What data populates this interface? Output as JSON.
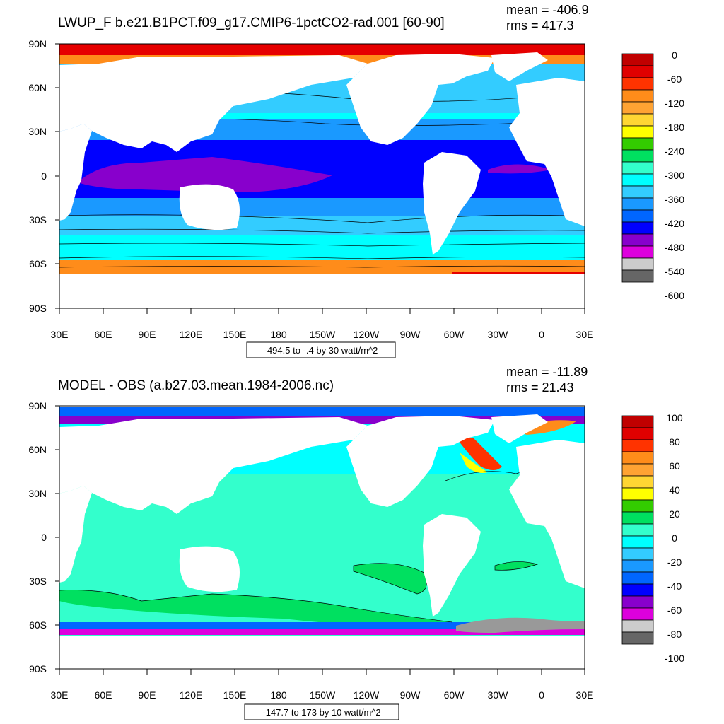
{
  "panels": [
    {
      "title": "LWUP_F b.e21.B1PCT.f09_g17.CMIP6-1pctCO2-rad.001 [60-90]",
      "mean": "mean = -406.9",
      "rms": "rms = 417.3",
      "lat_labels": [
        "90N",
        "60N",
        "30N",
        "0",
        "30S",
        "60S",
        "90S"
      ],
      "lon_labels": [
        "30E",
        "60E",
        "90E",
        "120E",
        "150E",
        "180",
        "150W",
        "120W",
        "90W",
        "60W",
        "30W",
        "0",
        "30E"
      ],
      "range_label": "-494.5 to -.4 by 30 watt/m^2",
      "colorbar_labels": [
        "0",
        "-60",
        "-120",
        "-180",
        "-240",
        "-300",
        "-360",
        "-420",
        "-480",
        "-540",
        "-600"
      ],
      "colorbar_colors": [
        "#c00000",
        "#e00000",
        "#ff3300",
        "#ff8c1a",
        "#ffa333",
        "#ffd633",
        "#ffff00",
        "#33cc00",
        "#00e060",
        "#33ffcc",
        "#00ffff",
        "#33ccff",
        "#1a99ff",
        "#0066ff",
        "#0000ff",
        "#8800cc",
        "#dd00dd",
        "#cccccc",
        "#666666"
      ]
    },
    {
      "title": "MODEL - OBS (a.b27.03.mean.1984-2006.nc)",
      "mean": "mean = -11.89",
      "rms": "rms = 21.43",
      "lat_labels": [
        "90N",
        "60N",
        "30N",
        "0",
        "30S",
        "60S",
        "90S"
      ],
      "lon_labels": [
        "30E",
        "60E",
        "90E",
        "120E",
        "150E",
        "180",
        "150W",
        "120W",
        "90W",
        "60W",
        "30W",
        "0",
        "30E"
      ],
      "range_label": "-147.7 to 173 by 10 watt/m^2",
      "colorbar_labels": [
        "100",
        "80",
        "60",
        "40",
        "20",
        "0",
        "-20",
        "-40",
        "-60",
        "-80",
        "-100"
      ],
      "colorbar_colors": [
        "#c00000",
        "#e00000",
        "#ff3300",
        "#ff8c1a",
        "#ffa333",
        "#ffd633",
        "#ffff00",
        "#33cc00",
        "#00e060",
        "#33ffcc",
        "#00ffff",
        "#33ccff",
        "#1a99ff",
        "#0066ff",
        "#0000ff",
        "#8800cc",
        "#dd00dd",
        "#cccccc",
        "#666666"
      ]
    }
  ],
  "map_colors": {
    "land": "#ffffff",
    "arctic_top": "#e60000",
    "arctic_mid": "#ff8c1a",
    "arctic_inner": "#ffd633",
    "north_pacific": "#33ccff",
    "north_atlantic": "#33ccff",
    "subtropics": "#1a99ff",
    "tropics": "#0000ff",
    "warm_pool": "#8800cc",
    "south_mid": "#33ccff",
    "southern_ocean": "#00ffff",
    "antarctic_edge": "#ff8c1a",
    "antarctic_red": "#e60000",
    "diff_base": "#33ffcc",
    "diff_light": "#00ffff",
    "diff_green": "#00e060",
    "diff_blue": "#0066ff",
    "diff_purple": "#8800cc",
    "diff_magenta": "#dd00dd",
    "diff_red": "#ff3300",
    "diff_yellow": "#ffff00",
    "diff_orange": "#ff8c1a",
    "diff_grey": "#999999"
  }
}
